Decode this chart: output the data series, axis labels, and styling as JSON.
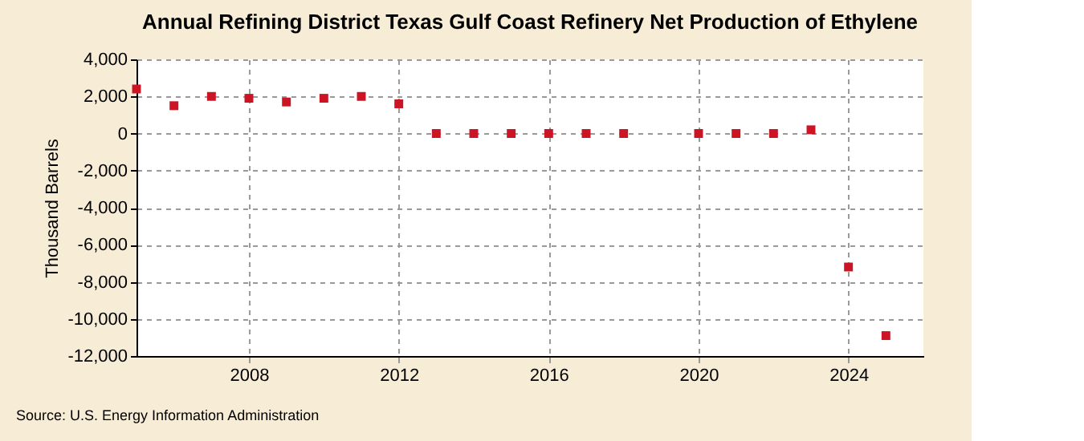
{
  "chart_data": {
    "type": "scatter",
    "title": "Annual Refining District Texas Gulf Coast Refinery Net Production of Ethylene",
    "ylabel": "Thousand Barrels",
    "x": [
      2005,
      2006,
      2007,
      2008,
      2009,
      2010,
      2011,
      2012,
      2013,
      2014,
      2015,
      2016,
      2017,
      2018,
      2020,
      2021,
      2022,
      2023,
      2024,
      2025
    ],
    "series": [
      {
        "color": "#cc1424",
        "values": [
          2400,
          1500,
          2000,
          1900,
          1700,
          1900,
          2000,
          1600,
          0,
          0,
          0,
          0,
          0,
          0,
          0,
          0,
          0,
          200,
          -7200,
          -10900
        ]
      }
    ],
    "xlim": [
      2005,
      2026
    ],
    "xticks": [
      2008,
      2012,
      2016,
      2020,
      2024
    ],
    "ylim": [
      -12000,
      4000
    ],
    "yticks": [
      {
        "value": -12000,
        "label": "-12,000"
      },
      {
        "value": -10000,
        "label": "-10,000"
      },
      {
        "value": -8000,
        "label": "-8,000"
      },
      {
        "value": -6000,
        "label": "-6,000"
      },
      {
        "value": -4000,
        "label": "-4,000"
      },
      {
        "value": -2000,
        "label": "-2,000"
      },
      0,
      {
        "value": 2000,
        "label": "2,000"
      },
      {
        "value": 4000,
        "label": "4,000"
      }
    ],
    "grid": true,
    "marker": "square",
    "annotations": [
      "Source: U.S. Energy Information Administration"
    ]
  }
}
